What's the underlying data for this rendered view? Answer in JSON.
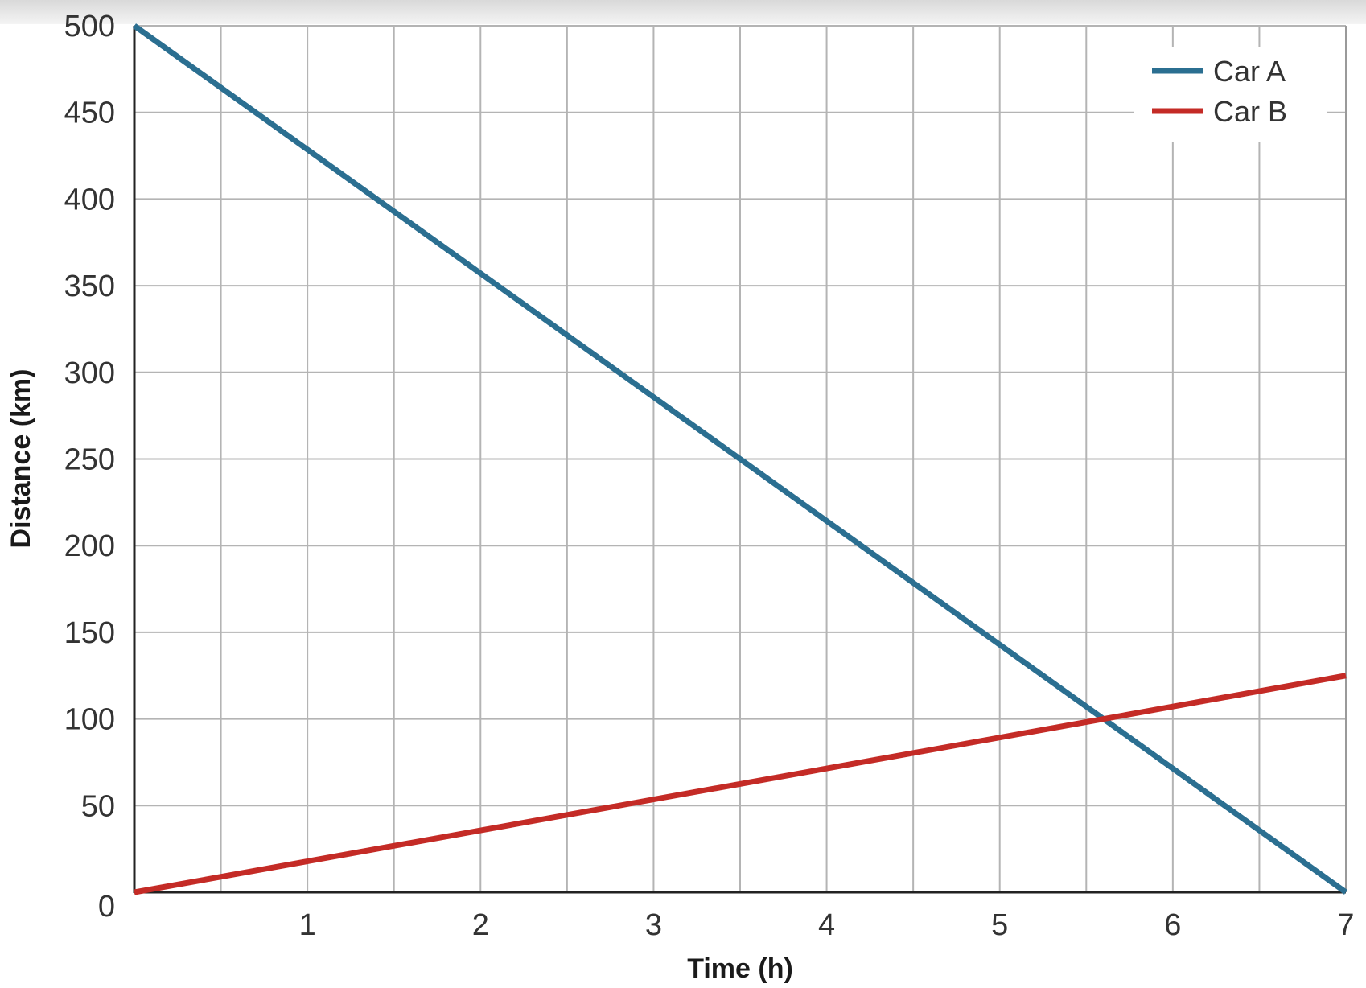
{
  "chart_data": {
    "type": "line",
    "xlabel": "Time (h)",
    "ylabel": "Distance (km)",
    "xlim": [
      0,
      7
    ],
    "ylim": [
      0,
      500
    ],
    "x_ticks": [
      1,
      2,
      3,
      4,
      5,
      6,
      7
    ],
    "y_ticks": [
      0,
      50,
      100,
      150,
      200,
      250,
      300,
      350,
      400,
      450,
      500
    ],
    "minor_x_step": 0.5,
    "grid": true,
    "legend_position": "top-right",
    "series": [
      {
        "name": "Car A",
        "color": "#2b6f91",
        "x": [
          0,
          7
        ],
        "y": [
          500,
          0
        ]
      },
      {
        "name": "Car B",
        "color": "#c42b26",
        "x": [
          0,
          7
        ],
        "y": [
          0,
          125
        ]
      }
    ]
  }
}
